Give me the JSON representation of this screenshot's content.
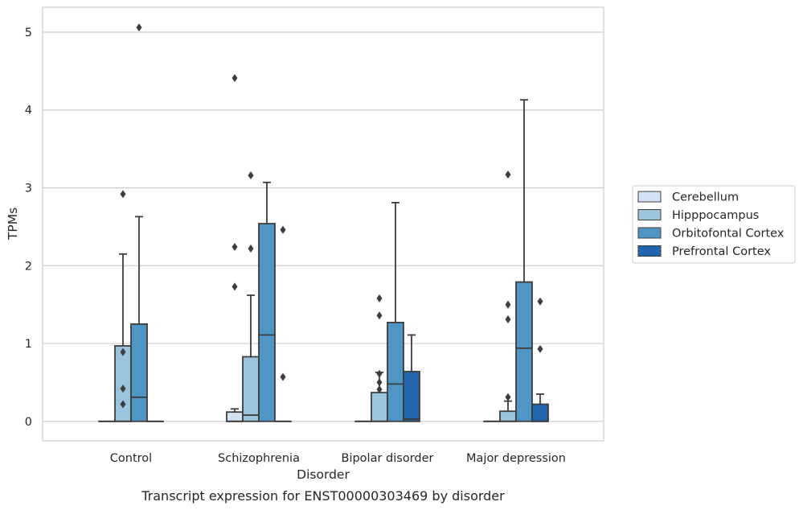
{
  "chart_data": {
    "type": "box",
    "xlabel": "Disorder",
    "ylabel": "TPMs",
    "caption": "Transcript expression for ENST00000303469 by disorder",
    "categories": [
      "Control",
      "Schizophrenia",
      "Bipolar disorder",
      "Major depression"
    ],
    "ylim": [
      -0.25,
      5.32
    ],
    "yticks": [
      0,
      1,
      2,
      3,
      4,
      5
    ],
    "grid": "horizontal",
    "legend_position": "right",
    "series": [
      {
        "name": "Cerebellum",
        "color": "#d1e2f2",
        "boxes": [
          {
            "q1": 0,
            "median": 0,
            "q3": 0,
            "whislo": 0,
            "whishi": 0,
            "fliers": []
          },
          {
            "q1": 0,
            "median": 0.0,
            "q3": 0.12,
            "whislo": 0,
            "whishi": 0.16,
            "fliers": [
              4.41,
              2.24,
              1.73
            ]
          },
          {
            "q1": 0,
            "median": 0,
            "q3": 0,
            "whislo": 0,
            "whishi": 0,
            "fliers": []
          },
          {
            "q1": 0,
            "median": 0,
            "q3": 0,
            "whislo": 0,
            "whishi": 0,
            "fliers": []
          }
        ]
      },
      {
        "name": "Hipppocampus",
        "color": "#9ac3de",
        "boxes": [
          {
            "q1": 0,
            "median": 0,
            "q3": 0.97,
            "whislo": 0,
            "whishi": 2.15,
            "fliers": [
              2.92,
              0.89,
              0.42,
              0.22
            ]
          },
          {
            "q1": 0,
            "median": 0.08,
            "q3": 0.83,
            "whislo": 0,
            "whishi": 1.62,
            "fliers": [
              3.16,
              2.22
            ]
          },
          {
            "q1": 0,
            "median": 0,
            "q3": 0.37,
            "whislo": 0,
            "whishi": 0.63,
            "fliers": [
              1.58,
              1.36,
              0.61,
              0.5,
              0.41
            ]
          },
          {
            "q1": 0,
            "median": 0,
            "q3": 0.13,
            "whislo": 0,
            "whishi": 0.26,
            "fliers": [
              3.17,
              1.5,
              1.31,
              0.31
            ]
          }
        ]
      },
      {
        "name": "Orbitofontal Cortex",
        "color": "#5096c4",
        "boxes": [
          {
            "q1": 0,
            "median": 0.31,
            "q3": 1.25,
            "whislo": 0,
            "whishi": 2.63,
            "fliers": [
              5.06
            ]
          },
          {
            "q1": 0,
            "median": 1.11,
            "q3": 2.54,
            "whislo": 0,
            "whishi": 3.07,
            "fliers": []
          },
          {
            "q1": 0,
            "median": 0.48,
            "q3": 1.27,
            "whislo": 0,
            "whishi": 2.81,
            "fliers": []
          },
          {
            "q1": 0,
            "median": 0.94,
            "q3": 1.79,
            "whislo": 0,
            "whishi": 4.13,
            "fliers": []
          }
        ]
      },
      {
        "name": "Prefrontal Cortex",
        "color": "#2265ac",
        "boxes": [
          {
            "q1": 0,
            "median": 0,
            "q3": 0,
            "whislo": 0,
            "whishi": 0,
            "fliers": []
          },
          {
            "q1": 0,
            "median": 0,
            "q3": 0,
            "whislo": 0,
            "whishi": 0,
            "fliers": [
              2.46,
              0.57
            ]
          },
          {
            "q1": 0,
            "median": 0.03,
            "q3": 0.64,
            "whislo": 0,
            "whishi": 1.11,
            "fliers": []
          },
          {
            "q1": 0,
            "median": 0,
            "q3": 0.22,
            "whislo": 0,
            "whishi": 0.35,
            "fliers": [
              1.54,
              0.93
            ]
          }
        ]
      }
    ]
  }
}
